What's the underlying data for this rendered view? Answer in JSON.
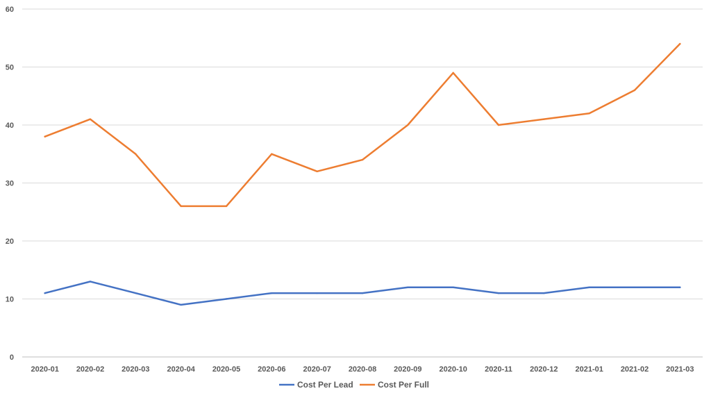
{
  "chart_data": {
    "type": "line",
    "categories": [
      "2020-01",
      "2020-02",
      "2020-03",
      "2020-04",
      "2020-05",
      "2020-06",
      "2020-07",
      "2020-08",
      "2020-09",
      "2020-10",
      "2020-11",
      "2020-12",
      "2021-01",
      "2021-02",
      "2021-03"
    ],
    "series": [
      {
        "name": "Cost Per Lead",
        "color": "#4472C4",
        "values": [
          11,
          13,
          11,
          9,
          10,
          11,
          11,
          11,
          12,
          12,
          11,
          11,
          12,
          12,
          12
        ]
      },
      {
        "name": "Cost Per Full",
        "color": "#ED7D31",
        "values": [
          38,
          41,
          35,
          26,
          26,
          35,
          32,
          34,
          40,
          49,
          40,
          41,
          42,
          46,
          54
        ]
      }
    ],
    "ylim": [
      0,
      60
    ],
    "yticks": [
      0,
      10,
      20,
      30,
      40,
      50,
      60
    ],
    "grid": true,
    "legend_position": "bottom-center",
    "title": "",
    "xlabel": "",
    "ylabel": ""
  }
}
